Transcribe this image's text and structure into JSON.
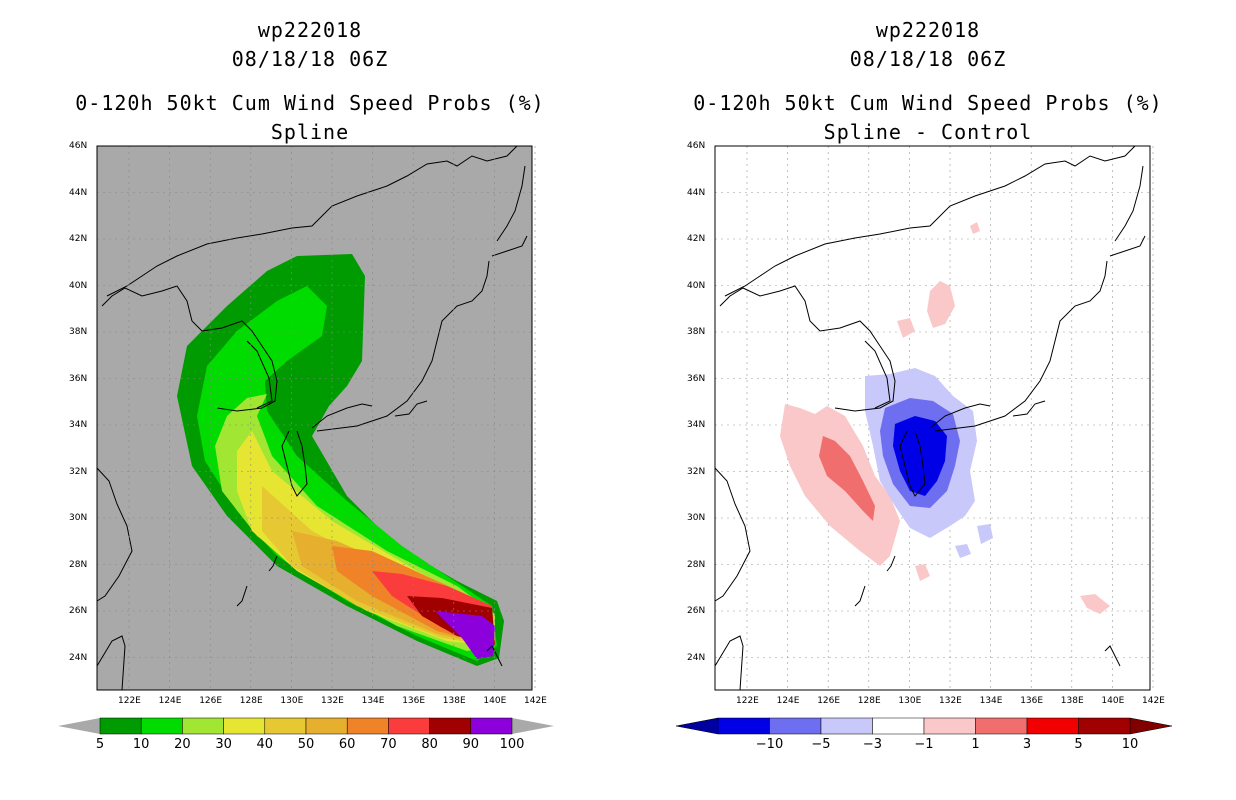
{
  "left_panel": {
    "storm_id": "wp222018",
    "datetime": "08/18/18 06Z",
    "product": "0-120h 50kt Cum Wind Speed Probs (%)",
    "subtitle": "Spline",
    "lat_labels": [
      "46N",
      "44N",
      "42N",
      "40N",
      "38N",
      "36N",
      "34N",
      "32N",
      "30N",
      "28N",
      "26N",
      "24N"
    ],
    "lon_labels": [
      "122E",
      "124E",
      "126E",
      "128E",
      "130E",
      "132E",
      "134E",
      "136E",
      "138E",
      "140E",
      "142E"
    ],
    "colorbar": {
      "labels": [
        "5",
        "10",
        "20",
        "30",
        "40",
        "50",
        "60",
        "70",
        "80",
        "90",
        "100"
      ],
      "colors": [
        "#009b00",
        "#00dc00",
        "#a0e632",
        "#e6e632",
        "#e6c832",
        "#e6af2d",
        "#f08228",
        "#fa3c3c",
        "#a00000",
        "#8c00dc"
      ]
    }
  },
  "right_panel": {
    "storm_id": "wp222018",
    "datetime": "08/18/18 06Z",
    "product": "0-120h 50kt Cum Wind Speed Probs (%)",
    "subtitle": "Spline - Control",
    "lat_labels": [
      "46N",
      "44N",
      "42N",
      "40N",
      "38N",
      "36N",
      "34N",
      "32N",
      "30N",
      "28N",
      "26N",
      "24N"
    ],
    "lon_labels": [
      "122E",
      "124E",
      "126E",
      "128E",
      "130E",
      "132E",
      "134E",
      "136E",
      "138E",
      "140E",
      "142E"
    ],
    "colorbar": {
      "labels": [
        "−10",
        "−5",
        "−3",
        "−1",
        "1",
        "3",
        "5",
        "10"
      ],
      "colors": [
        "#0000a0",
        "#0000e6",
        "#6e6ef0",
        "#c8c8fa",
        "#ffffff",
        "#fac8c8",
        "#f06e6e",
        "#f00000",
        "#a00000",
        "#800000"
      ]
    }
  }
}
